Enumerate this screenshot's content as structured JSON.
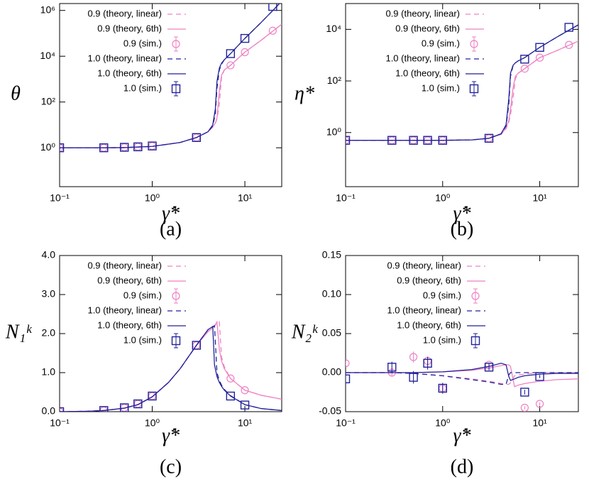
{
  "chart_data": [
    {
      "type": "line",
      "panel_label": "(a)",
      "xlabel": "γ̇*",
      "ylabel": "θ",
      "xscale": "log",
      "yscale": "log",
      "xlim": [
        0.1,
        25
      ],
      "xticks": [
        {
          "value": 0.1,
          "label": "10⁻¹"
        },
        {
          "value": 1,
          "label": "10⁰"
        },
        {
          "value": 10,
          "label": "10¹"
        }
      ],
      "ylim": [
        0.02,
        2000000
      ],
      "yticks": [
        {
          "value": 1,
          "label": "10⁰"
        },
        {
          "value": 100,
          "label": "10²"
        },
        {
          "value": 10000,
          "label": "10⁴"
        },
        {
          "value": 1000000,
          "label": "10⁶"
        }
      ],
      "legend": "upper left",
      "series": [
        {
          "name": "0.9 (theory, linear)",
          "color": "#ee82c3",
          "style": "dashed",
          "x": [
            0.1,
            0.3,
            0.5,
            1,
            2,
            3,
            4,
            4.5,
            4.8,
            5,
            5.3,
            5.6,
            6,
            7,
            10,
            15,
            25
          ],
          "values": [
            1,
            1,
            1.02,
            1.15,
            1.7,
            2.8,
            5,
            8,
            12,
            18,
            80,
            1200,
            2500,
            4000,
            15000,
            50000,
            250000
          ]
        },
        {
          "name": "0.9 (theory, 6th)",
          "color": "#ee82c3",
          "style": "solid",
          "x": [
            0.1,
            0.3,
            0.5,
            1,
            2,
            3,
            4,
            4.5,
            4.8,
            5,
            5.3,
            5.6,
            6,
            7,
            10,
            15,
            25
          ],
          "values": [
            1,
            1,
            1.02,
            1.15,
            1.7,
            2.8,
            5,
            8,
            12,
            20,
            300,
            1500,
            2500,
            4000,
            15000,
            50000,
            250000
          ]
        },
        {
          "name": "0.9 (sim.)",
          "color": "#ee82c3",
          "style": "circle",
          "x": [
            0.1,
            0.3,
            0.5,
            0.7,
            1,
            3,
            7,
            10,
            20
          ],
          "values": [
            1,
            1,
            1.05,
            1.1,
            1.2,
            2.8,
            4000,
            15000,
            130000
          ]
        },
        {
          "name": "1.0 (theory, linear)",
          "color": "#22229a",
          "style": "dashed",
          "x": [
            0.1,
            0.3,
            0.5,
            1,
            2,
            3,
            4,
            4.5,
            4.8,
            5,
            5.3,
            5.6,
            6,
            7,
            10,
            15,
            25
          ],
          "values": [
            1,
            1,
            1.02,
            1.15,
            1.7,
            2.8,
            5,
            9,
            30,
            400,
            2500,
            4500,
            7000,
            13000,
            60000,
            300000,
            2500000
          ]
        },
        {
          "name": "1.0 (theory, 6th)",
          "color": "#22229a",
          "style": "solid",
          "x": [
            0.1,
            0.3,
            0.5,
            1,
            2,
            3,
            4,
            4.5,
            4.8,
            5,
            5.3,
            5.6,
            6,
            7,
            10,
            15,
            25
          ],
          "values": [
            1,
            1,
            1.02,
            1.15,
            1.7,
            2.8,
            5,
            10,
            50,
            800,
            3000,
            5000,
            7000,
            13000,
            60000,
            300000,
            2500000
          ]
        },
        {
          "name": "1.0 (sim.)",
          "color": "#22229a",
          "style": "square",
          "x": [
            0.1,
            0.3,
            0.5,
            0.7,
            1,
            3,
            7,
            10,
            20
          ],
          "values": [
            1,
            1,
            1.05,
            1.1,
            1.2,
            2.8,
            13000,
            60000,
            1500000
          ]
        }
      ]
    },
    {
      "type": "line",
      "panel_label": "(b)",
      "xlabel": "γ̇*",
      "ylabel": "η*",
      "xscale": "log",
      "yscale": "log",
      "xlim": [
        0.1,
        25
      ],
      "xticks": [
        {
          "value": 0.1,
          "label": "10⁻¹"
        },
        {
          "value": 1,
          "label": "10⁰"
        },
        {
          "value": 10,
          "label": "10¹"
        }
      ],
      "ylim": [
        0.008,
        100000
      ],
      "yticks": [
        {
          "value": 1,
          "label": "10⁰"
        },
        {
          "value": 100,
          "label": "10²"
        },
        {
          "value": 10000,
          "label": "10⁴"
        }
      ],
      "legend": "upper left",
      "series": [
        {
          "name": "0.9 (theory, linear)",
          "color": "#ee82c3",
          "style": "dashed",
          "x": [
            0.1,
            0.3,
            0.5,
            1,
            2,
            3,
            4,
            4.5,
            4.8,
            5,
            5.3,
            5.6,
            6,
            7,
            10,
            15,
            25
          ],
          "values": [
            0.5,
            0.5,
            0.5,
            0.5,
            0.52,
            0.6,
            0.85,
            1.4,
            2.5,
            5,
            20,
            120,
            200,
            300,
            800,
            1500,
            3500
          ]
        },
        {
          "name": "0.9 (theory, 6th)",
          "color": "#ee82c3",
          "style": "solid",
          "x": [
            0.1,
            0.3,
            0.5,
            1,
            2,
            3,
            4,
            4.5,
            4.8,
            5,
            5.3,
            5.6,
            6,
            7,
            10,
            15,
            25
          ],
          "values": [
            0.5,
            0.5,
            0.5,
            0.5,
            0.52,
            0.6,
            0.85,
            1.5,
            3,
            8,
            50,
            150,
            200,
            300,
            800,
            1500,
            3500
          ]
        },
        {
          "name": "0.9 (sim.)",
          "color": "#ee82c3",
          "style": "circle",
          "x": [
            0.1,
            0.3,
            0.5,
            0.7,
            1,
            3,
            7,
            10,
            20
          ],
          "values": [
            0.5,
            0.5,
            0.5,
            0.5,
            0.5,
            0.6,
            300,
            800,
            2500
          ]
        },
        {
          "name": "1.0 (theory, linear)",
          "color": "#22229a",
          "style": "dashed",
          "x": [
            0.1,
            0.3,
            0.5,
            1,
            2,
            3,
            4,
            4.5,
            4.8,
            5,
            5.3,
            5.6,
            6,
            7,
            10,
            15,
            25
          ],
          "values": [
            0.5,
            0.5,
            0.5,
            0.5,
            0.52,
            0.6,
            0.9,
            1.8,
            12,
            150,
            380,
            500,
            600,
            800,
            2000,
            5000,
            15000
          ]
        },
        {
          "name": "1.0 (theory, 6th)",
          "color": "#22229a",
          "style": "solid",
          "x": [
            0.1,
            0.3,
            0.5,
            1,
            2,
            3,
            4,
            4.5,
            4.8,
            5,
            5.3,
            5.6,
            6,
            7,
            10,
            15,
            25
          ],
          "values": [
            0.5,
            0.5,
            0.5,
            0.5,
            0.52,
            0.6,
            0.9,
            2,
            20,
            200,
            400,
            500,
            600,
            800,
            2000,
            5000,
            15000
          ]
        },
        {
          "name": "1.0 (sim.)",
          "color": "#22229a",
          "style": "square",
          "x": [
            0.1,
            0.3,
            0.5,
            0.7,
            1,
            3,
            7,
            10,
            20
          ],
          "values": [
            0.5,
            0.5,
            0.5,
            0.5,
            0.5,
            0.6,
            700,
            2000,
            12000
          ]
        }
      ]
    },
    {
      "type": "line",
      "panel_label": "(c)",
      "xlabel": "γ̇*",
      "ylabel": "N₁ᵏ",
      "xscale": "log",
      "yscale": "linear",
      "xlim": [
        0.1,
        25
      ],
      "xticks": [
        {
          "value": 0.1,
          "label": "10⁻¹"
        },
        {
          "value": 1,
          "label": "10⁰"
        },
        {
          "value": 10,
          "label": "10¹"
        }
      ],
      "ylim": [
        0,
        4
      ],
      "yticks": [
        {
          "value": 0,
          "label": "0.0"
        },
        {
          "value": 1,
          "label": "1.0"
        },
        {
          "value": 2,
          "label": "2.0"
        },
        {
          "value": 3,
          "label": "3.0"
        },
        {
          "value": 4,
          "label": "4.0"
        }
      ],
      "legend": "upper left",
      "series": [
        {
          "name": "0.9 (theory, linear)",
          "color": "#ee82c3",
          "style": "dashed",
          "x": [
            0.1,
            0.2,
            0.3,
            0.5,
            0.7,
            1,
            1.5,
            2,
            3,
            4,
            4.5,
            4.7,
            5,
            5.3,
            5.6,
            6,
            7,
            10,
            15,
            25
          ],
          "values": [
            0,
            0.01,
            0.03,
            0.09,
            0.18,
            0.38,
            0.75,
            1.1,
            1.7,
            2.05,
            2.15,
            2.2,
            2.25,
            2.3,
            1.4,
            1.15,
            0.85,
            0.55,
            0.42,
            0.32
          ]
        },
        {
          "name": "0.9 (theory, 6th)",
          "color": "#ee82c3",
          "style": "solid",
          "x": [
            0.1,
            0.2,
            0.3,
            0.5,
            0.7,
            1,
            1.5,
            2,
            3,
            4,
            4.5,
            4.7,
            5,
            5.3,
            5.6,
            6,
            7,
            10,
            15,
            25
          ],
          "values": [
            0,
            0.01,
            0.03,
            0.09,
            0.18,
            0.38,
            0.75,
            1.1,
            1.7,
            2.05,
            2.15,
            2.2,
            2.3,
            1.6,
            1.3,
            1.1,
            0.85,
            0.55,
            0.42,
            0.32
          ]
        },
        {
          "name": "0.9 (sim.)",
          "color": "#ee82c3",
          "style": "circle",
          "x": [
            0.1,
            0.3,
            0.5,
            0.7,
            1,
            3,
            7,
            10
          ],
          "values": [
            0,
            0.03,
            0.1,
            0.2,
            0.4,
            1.7,
            0.85,
            0.55
          ]
        },
        {
          "name": "1.0 (theory, linear)",
          "color": "#22229a",
          "style": "dashed",
          "x": [
            0.1,
            0.2,
            0.3,
            0.5,
            0.7,
            1,
            1.5,
            2,
            3,
            4,
            4.5,
            4.7,
            5,
            5.3,
            5.6,
            6,
            7,
            10,
            15,
            25
          ],
          "values": [
            0,
            0.01,
            0.03,
            0.09,
            0.18,
            0.38,
            0.75,
            1.1,
            1.7,
            2.1,
            2.18,
            2.2,
            1.0,
            0.8,
            0.68,
            0.57,
            0.41,
            0.18,
            0.08,
            0.03
          ]
        },
        {
          "name": "1.0 (theory, 6th)",
          "color": "#22229a",
          "style": "solid",
          "x": [
            0.1,
            0.2,
            0.3,
            0.5,
            0.7,
            1,
            1.5,
            2,
            3,
            4,
            4.5,
            4.7,
            5,
            5.3,
            5.6,
            6,
            7,
            10,
            15,
            25
          ],
          "values": [
            0,
            0.01,
            0.03,
            0.09,
            0.18,
            0.38,
            0.75,
            1.1,
            1.7,
            2.1,
            2.18,
            1.2,
            0.9,
            0.75,
            0.65,
            0.55,
            0.4,
            0.18,
            0.08,
            0.03
          ]
        },
        {
          "name": "1.0 (sim.)",
          "color": "#22229a",
          "style": "square",
          "x": [
            0.1,
            0.3,
            0.5,
            0.7,
            1,
            3,
            7,
            10
          ],
          "values": [
            0,
            0.03,
            0.1,
            0.2,
            0.4,
            1.7,
            0.4,
            0.17
          ]
        }
      ]
    },
    {
      "type": "line",
      "panel_label": "(d)",
      "xlabel": "γ̇*",
      "ylabel": "N₂ᵏ",
      "xscale": "log",
      "yscale": "linear",
      "xlim": [
        0.1,
        25
      ],
      "xticks": [
        {
          "value": 0.1,
          "label": "10⁻¹"
        },
        {
          "value": 1,
          "label": "10⁰"
        },
        {
          "value": 10,
          "label": "10¹"
        }
      ],
      "ylim": [
        -0.05,
        0.15
      ],
      "yticks": [
        {
          "value": -0.05,
          "label": "-0.05"
        },
        {
          "value": 0,
          "label": "0.00"
        },
        {
          "value": 0.05,
          "label": "0.05"
        },
        {
          "value": 0.1,
          "label": "0.10"
        },
        {
          "value": 0.15,
          "label": "0.15"
        }
      ],
      "legend": "upper left",
      "series": [
        {
          "name": "0.9 (theory, linear)",
          "color": "#ee82c3",
          "style": "dashed",
          "x": [
            0.1,
            0.3,
            0.5,
            1,
            2,
            3,
            4,
            4.5,
            4.8,
            5,
            5.5,
            6,
            7,
            10,
            15,
            25
          ],
          "values": [
            0,
            0,
            -0.001,
            -0.004,
            -0.008,
            -0.011,
            -0.014,
            -0.015,
            -0.015,
            -0.013,
            -0.004,
            -0.003,
            -0.002,
            0,
            0,
            0
          ]
        },
        {
          "name": "0.9 (theory, 6th)",
          "color": "#ee82c3",
          "style": "solid",
          "x": [
            0.1,
            0.3,
            0.5,
            1,
            2,
            3,
            4,
            4.5,
            4.8,
            5,
            5.5,
            6,
            7,
            10,
            15,
            25
          ],
          "values": [
            0,
            0,
            0,
            0.001,
            0.003,
            0.006,
            0.009,
            0.01,
            0.01,
            0.008,
            -0.018,
            -0.016,
            -0.014,
            -0.011,
            -0.009,
            -0.008
          ]
        },
        {
          "name": "0.9 (sim.)",
          "color": "#ee82c3",
          "style": "circle",
          "x": [
            0.1,
            0.3,
            0.5,
            0.7,
            1,
            3,
            7,
            10
          ],
          "values": [
            0.012,
            0,
            0.02,
            0.015,
            -0.02,
            0.01,
            -0.045,
            -0.04
          ],
          "errors": [
            0.003,
            0.004,
            0.007,
            0.006,
            0.005,
            0.003,
            0.002,
            0.002
          ]
        },
        {
          "name": "1.0 (theory, linear)",
          "color": "#22229a",
          "style": "dashed",
          "x": [
            0.1,
            0.3,
            0.5,
            1,
            2,
            3,
            4,
            4.5,
            4.8,
            5,
            5.5,
            6,
            7,
            10,
            15,
            25
          ],
          "values": [
            0,
            0,
            -0.001,
            -0.004,
            -0.009,
            -0.012,
            -0.015,
            -0.015,
            -0.003,
            0,
            0,
            0,
            0,
            0,
            0,
            0
          ]
        },
        {
          "name": "1.0 (theory, 6th)",
          "color": "#22229a",
          "style": "solid",
          "x": [
            0.1,
            0.3,
            0.5,
            1,
            2,
            3,
            4,
            4.5,
            4.8,
            5,
            5.5,
            6,
            7,
            10,
            15,
            25
          ],
          "values": [
            0,
            0,
            0,
            0.001,
            0.004,
            0.008,
            0.012,
            0.01,
            -0.005,
            -0.01,
            -0.008,
            -0.006,
            -0.004,
            -0.002,
            -0.001,
            -0.001
          ]
        },
        {
          "name": "1.0 (sim.)",
          "color": "#22229a",
          "style": "square",
          "x": [
            0.1,
            0.3,
            0.5,
            0.7,
            1,
            3,
            7,
            10
          ],
          "values": [
            -0.008,
            0.007,
            -0.006,
            0.012,
            -0.02,
            0.007,
            -0.025,
            -0.005
          ],
          "errors": [
            0.006,
            0.007,
            0.008,
            0.008,
            0.007,
            0.004,
            0.003,
            0.002
          ]
        }
      ]
    }
  ]
}
